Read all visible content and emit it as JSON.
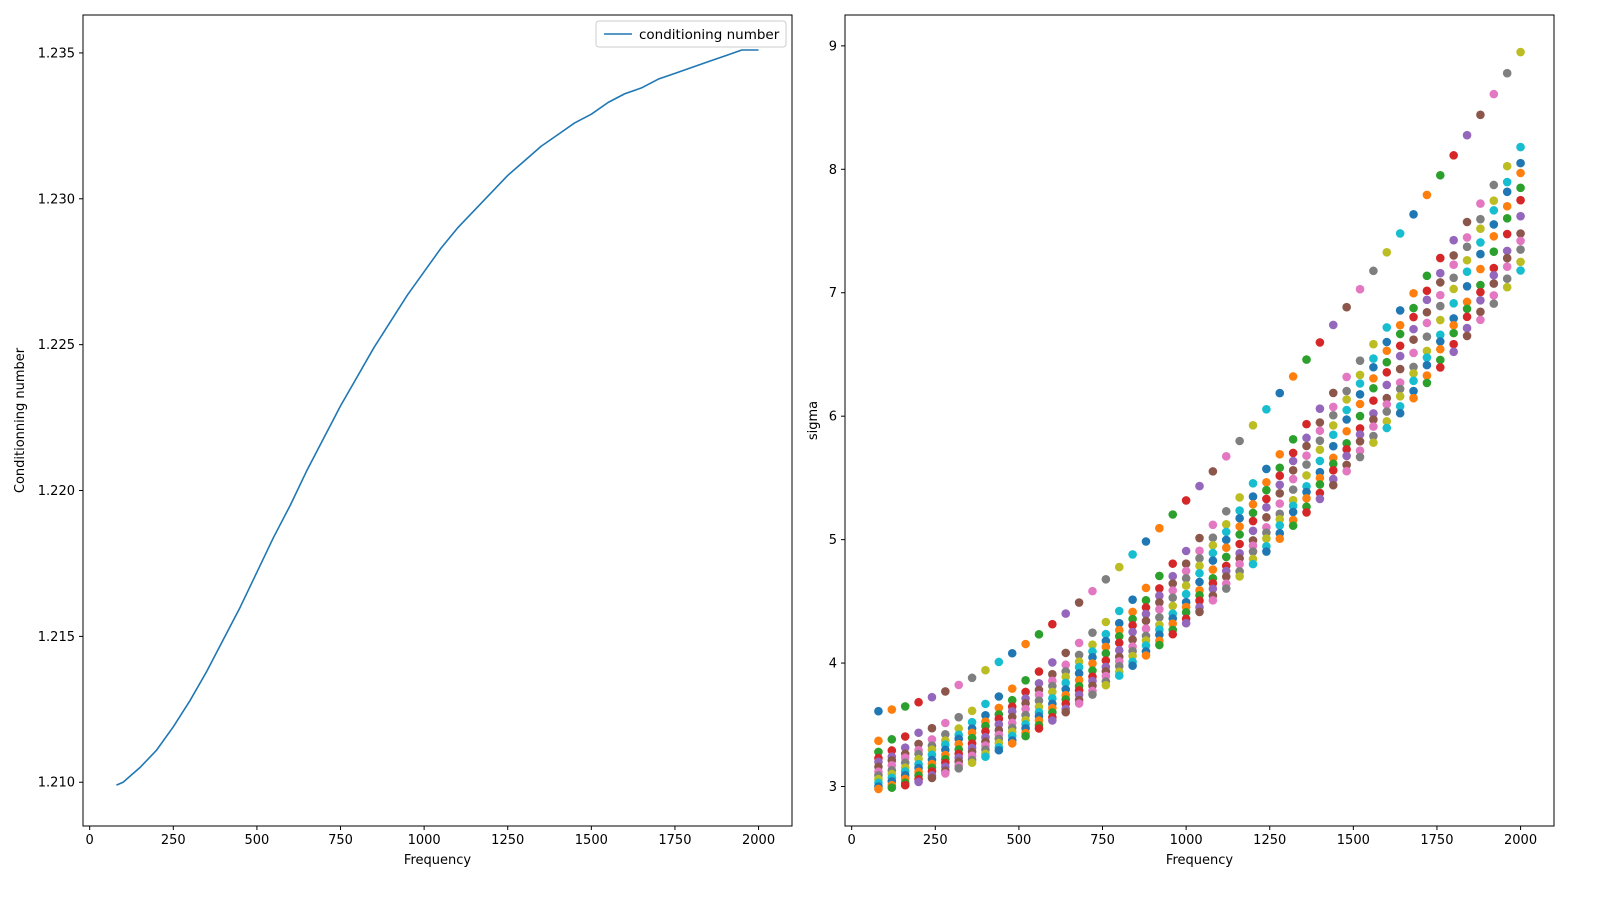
{
  "chart_data": [
    {
      "type": "line",
      "xlabel": "Frequency",
      "ylabel": "Conditionning number",
      "xlim": [
        -20,
        2100
      ],
      "ylim": [
        1.2085,
        1.2363
      ],
      "xticks": [
        0,
        250,
        500,
        750,
        1000,
        1250,
        1500,
        1750,
        2000
      ],
      "yticks": [
        1.21,
        1.215,
        1.22,
        1.225,
        1.23,
        1.235
      ],
      "ytick_labels": [
        "1.210",
        "1.215",
        "1.220",
        "1.225",
        "1.230",
        "1.235"
      ],
      "legend": {
        "position": "top-right",
        "entries": [
          "conditioning number"
        ]
      },
      "series": [
        {
          "name": "conditioning number",
          "color": "#1f77b4",
          "x": [
            80,
            100,
            150,
            200,
            250,
            300,
            350,
            400,
            450,
            500,
            550,
            600,
            650,
            700,
            750,
            800,
            850,
            900,
            950,
            1000,
            1050,
            1100,
            1150,
            1200,
            1250,
            1300,
            1350,
            1400,
            1450,
            1500,
            1550,
            1600,
            1650,
            1700,
            1750,
            1800,
            1850,
            1900,
            1950,
            2000
          ],
          "values": [
            1.2099,
            1.21,
            1.2105,
            1.2111,
            1.2119,
            1.2128,
            1.2138,
            1.2149,
            1.216,
            1.2172,
            1.2184,
            1.2195,
            1.2207,
            1.2218,
            1.2229,
            1.2239,
            1.2249,
            1.2258,
            1.2267,
            1.2275,
            1.2283,
            1.229,
            1.2296,
            1.2302,
            1.2308,
            1.2313,
            1.2318,
            1.2322,
            1.2326,
            1.2329,
            1.2333,
            1.2336,
            1.2338,
            1.2341,
            1.2343,
            1.2345,
            1.2347,
            1.2349,
            1.2351,
            1.2351
          ]
        }
      ]
    },
    {
      "type": "scatter",
      "xlabel": "Frequency",
      "ylabel": "sigma",
      "xlim": [
        -20,
        2100
      ],
      "ylim": [
        2.68,
        9.25
      ],
      "xticks": [
        0,
        250,
        500,
        750,
        1000,
        1250,
        1500,
        1750,
        2000
      ],
      "yticks": [
        3,
        4,
        5,
        6,
        7,
        8,
        9
      ],
      "ytick_labels": [
        "3",
        "4",
        "5",
        "6",
        "7",
        "8",
        "9"
      ],
      "x_start": 80,
      "x_step": 40,
      "x_count": 49,
      "point_colors": [
        "#1f77b4",
        "#ff7f0e",
        "#2ca02c",
        "#d62728",
        "#9467bd",
        "#8c564b",
        "#e377c2",
        "#7f7f7f",
        "#bcbd22",
        "#17becf"
      ],
      "series": [
        {
          "start": 3.61,
          "end": 8.95
        },
        {
          "start": 3.37,
          "end": 8.18
        },
        {
          "start": 3.28,
          "end": 8.05
        },
        {
          "start": 3.23,
          "end": 7.97
        },
        {
          "start": 3.2,
          "end": 7.85
        },
        {
          "start": 3.16,
          "end": 7.75
        },
        {
          "start": 3.12,
          "end": 7.62
        },
        {
          "start": 3.09,
          "end": 7.48
        },
        {
          "start": 3.06,
          "end": 7.42
        },
        {
          "start": 3.03,
          "end": 7.35
        },
        {
          "start": 3.0,
          "end": 7.25
        },
        {
          "start": 2.98,
          "end": 7.18
        }
      ]
    }
  ]
}
